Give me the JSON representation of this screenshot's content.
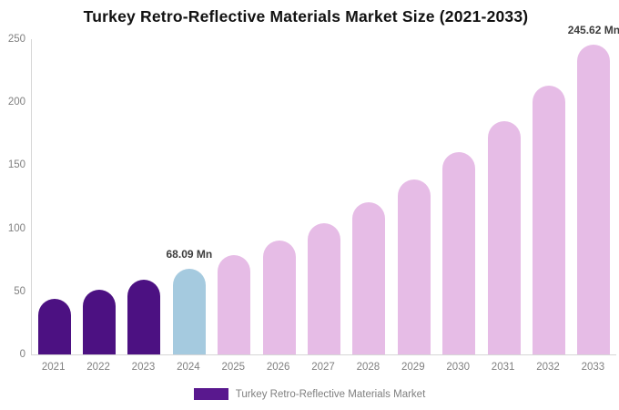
{
  "title": "Turkey Retro-Reflective Materials Market Size (2021-2033)",
  "legend": {
    "label": "Turkey Retro-Reflective Materials Market",
    "swatch_color": "#59188E"
  },
  "colors": {
    "historical_bar": "#4C1182",
    "current_bar": "#A5CADF",
    "forecast_bar": "#E6BCE6",
    "axis_line": "#d6d6d6",
    "tick_text": "#808080",
    "data_label_text": "#3d3d3d"
  },
  "chart_data": {
    "type": "bar",
    "title": "Turkey Retro-Reflective Materials Market Size (2021-2033)",
    "categories": [
      "2021",
      "2022",
      "2023",
      "2024",
      "2025",
      "2026",
      "2027",
      "2028",
      "2029",
      "2030",
      "2031",
      "2032",
      "2033"
    ],
    "values": [
      44.4,
      51.2,
      59.0,
      68.09,
      78.5,
      90.6,
      104.4,
      120.4,
      138.9,
      160.1,
      184.7,
      213.0,
      245.62
    ],
    "bar_colors": [
      "#4C1182",
      "#4C1182",
      "#4C1182",
      "#A5CADF",
      "#E6BCE6",
      "#E6BCE6",
      "#E6BCE6",
      "#E6BCE6",
      "#E6BCE6",
      "#E6BCE6",
      "#E6BCE6",
      "#E6BCE6",
      "#E6BCE6"
    ],
    "annotations": [
      {
        "index": 3,
        "text": "68.09 Mn"
      },
      {
        "index": 12,
        "text": "245.62 Mn"
      }
    ],
    "xlabel": "",
    "ylabel": "",
    "ylim": [
      0,
      250
    ],
    "yticks": [
      0,
      50,
      100,
      150,
      200,
      250
    ],
    "grid": false,
    "legend_position": "bottom",
    "unit": "Mn"
  }
}
